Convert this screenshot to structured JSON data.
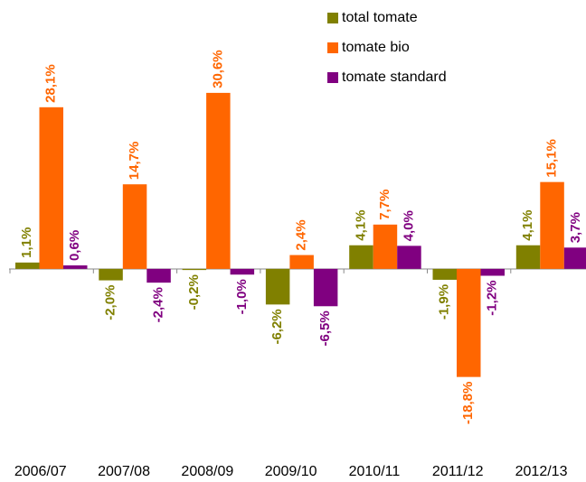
{
  "chart_data": {
    "type": "bar",
    "categories": [
      "2006/07",
      "2007/08",
      "2008/09",
      "2009/10",
      "2010/11",
      "2011/12",
      "2012/13"
    ],
    "series": [
      {
        "name": "total tomate",
        "color": "#808000",
        "values": [
          1.1,
          -2.0,
          -0.2,
          -6.2,
          4.1,
          -1.9,
          4.1
        ],
        "value_labels": [
          "1,1%",
          "-2,0%",
          "-0,2%",
          "-6,2%",
          "4,1%",
          "-1,9%",
          "4,1%"
        ]
      },
      {
        "name": "tomate bio",
        "color": "#ff6600",
        "values": [
          28.1,
          14.7,
          30.6,
          2.4,
          7.7,
          -18.8,
          15.1
        ],
        "value_labels": [
          "28,1%",
          "14,7%",
          "30,6%",
          "2,4%",
          "7,7%",
          "-18,8%",
          "15,1%"
        ]
      },
      {
        "name": "tomate standard",
        "color": "#800080",
        "values": [
          0.6,
          -2.4,
          -1.0,
          -6.5,
          4.0,
          -1.2,
          3.7
        ],
        "value_labels": [
          "0,6%",
          "-2,4%",
          "-1,0%",
          "-6,5%",
          "4,0%",
          "-1,2%",
          "3,7%"
        ]
      }
    ],
    "ylim": [
      -30,
      40
    ],
    "legend": "top-right"
  }
}
